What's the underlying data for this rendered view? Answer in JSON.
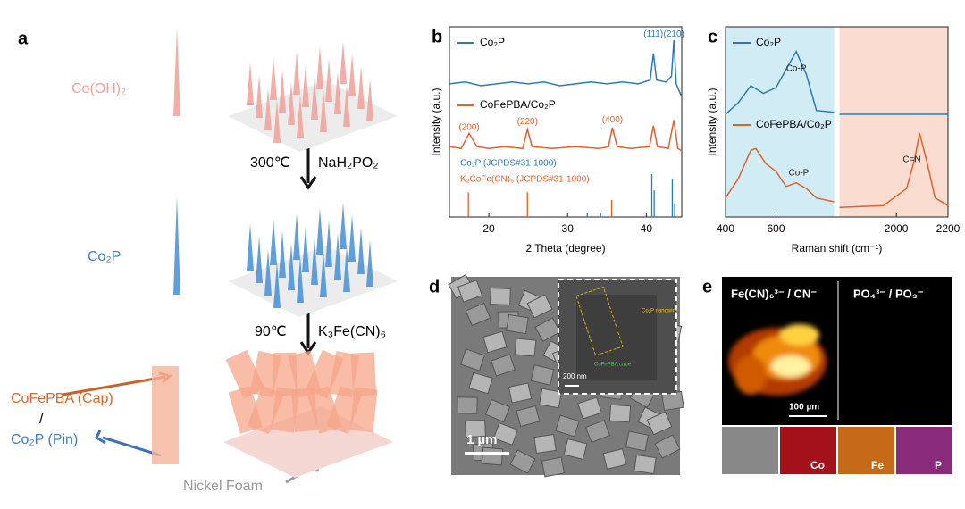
{
  "panel_a": {
    "letter": "a",
    "cohydroxide": "Co(OH)₂",
    "step1_temp": "300℃",
    "step1_reagent": "NaH₂PO₂",
    "co2p": "Co₂P",
    "step2_temp": "90℃",
    "step2_reagent": "K₃Fe(CN)₆",
    "cap": "CoFePBA (Cap)",
    "slash": "/",
    "pin": "Co₂P (Pin)",
    "foam": "Nickel Foam"
  },
  "chart_data": [
    {
      "type": "line",
      "letter": "b",
      "xlabel": "2 Theta (degree)",
      "ylabel": "Intensity (a.u.)",
      "xlim": [
        15,
        44.5
      ],
      "xticks": [
        20,
        30,
        40
      ],
      "ylim": [
        0,
        10
      ],
      "series": [
        {
          "name": "Co₂P",
          "color": "#2b7bba",
          "x": [
            15,
            17,
            19,
            21,
            23,
            25,
            27,
            29,
            31,
            33,
            35,
            37,
            39,
            40.5,
            40.9,
            41.3,
            42.5,
            43.2,
            43.5,
            43.8,
            44.4
          ],
          "values": [
            7.0,
            7.1,
            6.9,
            7.0,
            7.1,
            7.0,
            7.1,
            6.9,
            7.0,
            7.1,
            7.0,
            7.1,
            7.0,
            7.2,
            8.6,
            7.2,
            7.1,
            7.4,
            9.3,
            7.0,
            6.4
          ]
        },
        {
          "name": "CoFePBA/Co₂P",
          "color": "#e0622a",
          "x": [
            15,
            16.5,
            17.5,
            18.5,
            20,
            22,
            24.3,
            24.9,
            25.5,
            28,
            31,
            34,
            35.2,
            35.7,
            36.3,
            38,
            40.4,
            40.9,
            41.4,
            42.8,
            43.5,
            44,
            44.4
          ],
          "values": [
            3.7,
            3.6,
            4.4,
            3.7,
            3.6,
            3.7,
            3.6,
            4.6,
            3.7,
            3.6,
            3.7,
            3.6,
            3.7,
            4.7,
            3.7,
            3.6,
            3.7,
            4.8,
            3.7,
            3.6,
            5.1,
            3.6,
            3.5
          ]
        }
      ],
      "references": [
        {
          "name": "Co₂P (JCPDS#31-1000)",
          "color": "#2b7bba",
          "x": [
            32.5,
            34.2,
            40.7,
            41.0,
            43.3,
            43.6
          ],
          "values": [
            0.2,
            0.2,
            2.25,
            1.4,
            2.0,
            0.7
          ]
        },
        {
          "name": "K₂CoFe(CN)₆ (JCPDS#31-1000)",
          "color": "#e0622a",
          "x": [
            17.4,
            24.9,
            35.6
          ],
          "values": [
            1.3,
            1.3,
            0.9
          ]
        }
      ],
      "annotations": [
        {
          "text": "(111)",
          "x": 40.9,
          "y": 9.6,
          "color": "#2b7bba"
        },
        {
          "text": "(210)",
          "x": 43.5,
          "y": 9.6,
          "color": "#2b7bba"
        },
        {
          "text": "(200)",
          "x": 17.5,
          "y": 4.7,
          "color": "#e0622a"
        },
        {
          "text": "(220)",
          "x": 24.9,
          "y": 5.0,
          "color": "#e0622a"
        },
        {
          "text": "(400)",
          "x": 35.7,
          "y": 5.1,
          "color": "#e0622a"
        }
      ]
    },
    {
      "type": "line",
      "letter": "c",
      "xlabel": "Raman shift (cm⁻¹)",
      "ylabel": "Intensity (a.u.)",
      "xlim": [
        400,
        2200
      ],
      "x_break": [
        830,
        1780
      ],
      "xticks": [
        400,
        600,
        2000,
        2200
      ],
      "ylim": [
        0,
        10
      ],
      "series": [
        {
          "name": "Co₂P",
          "color": "#2b7bba",
          "x": [
            400,
            450,
            500,
            550,
            600,
            650,
            680,
            720,
            760,
            830,
            null,
            1780,
            2200
          ],
          "values": [
            5.4,
            6.0,
            6.9,
            6.5,
            6.8,
            8.0,
            8.7,
            7.5,
            5.6,
            5.5,
            null,
            5.4,
            5.4
          ]
        },
        {
          "name": "CoFePBA/Co₂P",
          "color": "#e0622a",
          "x": [
            400,
            450,
            500,
            520,
            560,
            600,
            640,
            680,
            720,
            760,
            830,
            null,
            1780,
            1950,
            2040,
            2070,
            2090,
            2120,
            2150,
            2200
          ],
          "values": [
            1.0,
            2.0,
            3.5,
            3.6,
            2.8,
            2.4,
            1.6,
            1.8,
            1.5,
            1.0,
            0.8,
            null,
            0.5,
            0.6,
            1.5,
            3.0,
            4.4,
            2.8,
            1.0,
            0.6
          ]
        }
      ],
      "annotations": [
        {
          "text": "Co-P",
          "x": 680,
          "y": 7.8,
          "color": "#222"
        },
        {
          "text": "Co-P",
          "x": 690,
          "y": 2.3,
          "color": "#222"
        },
        {
          "text": "C=N",
          "x": 2060,
          "y": 3.0,
          "color": "#222"
        }
      ]
    }
  ],
  "panel_d": {
    "letter": "d",
    "scale": "1 µm",
    "inset_scale": "200 nm",
    "nanowire": "Co₂P nanowire",
    "cube": "CoFePBA cube"
  },
  "panel_e": {
    "letter": "e",
    "left_title": "Fe(CN)₆³⁻ / CN⁻",
    "right_title": "PO₄³⁻ / PO₃⁻",
    "scale": "100 µm",
    "elements": [
      "Co",
      "Fe",
      "P"
    ]
  }
}
